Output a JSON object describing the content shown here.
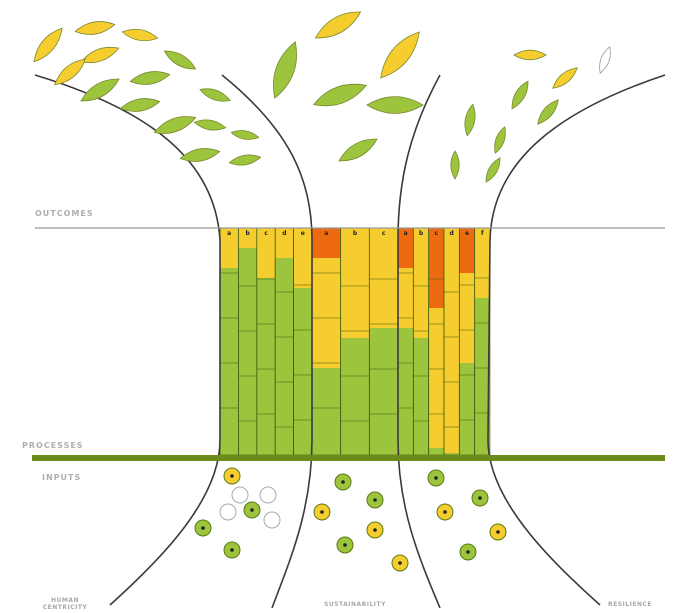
{
  "labels": {
    "outcomes": "OUTCOMES",
    "processes": "PROCESSES",
    "inputs": "INPUTS"
  },
  "pillars": [
    "HUMAN CENTRICITY",
    "SUSTAINABILITY",
    "RESILIENCE"
  ],
  "column_letters": [
    [
      "a",
      "b",
      "c",
      "d",
      "e"
    ],
    [
      "a",
      "b",
      "c"
    ],
    [
      "a",
      "b",
      "c",
      "d",
      "e",
      "f"
    ]
  ]
}
